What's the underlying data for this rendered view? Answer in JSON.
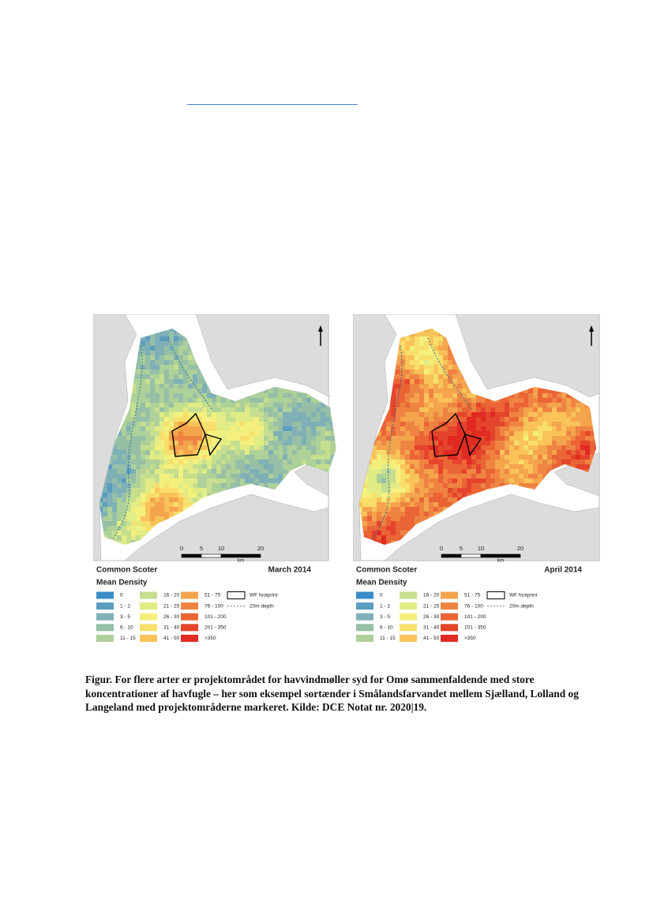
{
  "figure": {
    "panels": [
      {
        "species": "Common Scoter",
        "metric": "Mean Density",
        "period": "March 2014",
        "scale": {
          "ticks": [
            "0",
            "5",
            "10",
            "20"
          ],
          "unit": "km"
        },
        "legend": {
          "classes": [
            {
              "label": "0",
              "color": "#3a8dc8"
            },
            {
              "label": "1 - 2",
              "color": "#5b9dbf"
            },
            {
              "label": "3 - 5",
              "color": "#7fb0b8"
            },
            {
              "label": "6 - 10",
              "color": "#96bfa6"
            },
            {
              "label": "11 - 15",
              "color": "#aed099"
            },
            {
              "label": "16 - 20",
              "color": "#c6df8f"
            },
            {
              "label": "21 - 25",
              "color": "#e2ec84"
            },
            {
              "label": "26 - 30",
              "color": "#f4f07e"
            },
            {
              "label": "31 - 40",
              "color": "#f8df6c"
            },
            {
              "label": "41 - 50",
              "color": "#f9c35a"
            },
            {
              "label": "51 - 75",
              "color": "#f4a44c"
            },
            {
              "label": "76 - 100",
              "color": "#ef8442"
            },
            {
              "label": "101 - 200",
              "color": "#ea6436"
            },
            {
              "label": "201 - 350",
              "color": "#e5442c"
            },
            {
              "label": ">350",
              "color": "#e02a22"
            }
          ],
          "footprint": "WF footprint",
          "depth": "20m depth"
        }
      },
      {
        "species": "Common Scoter",
        "metric": "Mean Density",
        "period": "April 2014",
        "scale": {
          "ticks": [
            "0",
            "5",
            "10",
            "20"
          ],
          "unit": "km"
        },
        "legend": {
          "classes": [
            {
              "label": "0",
              "color": "#3a8dc8"
            },
            {
              "label": "1 - 2",
              "color": "#5b9dbf"
            },
            {
              "label": "3 - 5",
              "color": "#7fb0b8"
            },
            {
              "label": "6 - 10",
              "color": "#96bfa6"
            },
            {
              "label": "11 - 15",
              "color": "#aed099"
            },
            {
              "label": "16 - 20",
              "color": "#c6df8f"
            },
            {
              "label": "21 - 25",
              "color": "#e2ec84"
            },
            {
              "label": "26 - 30",
              "color": "#f4f07e"
            },
            {
              "label": "31 - 40",
              "color": "#f8df6c"
            },
            {
              "label": "41 - 50",
              "color": "#f9c35a"
            },
            {
              "label": "51 - 75",
              "color": "#f4a44c"
            },
            {
              "label": "76 - 100",
              "color": "#ef8442"
            },
            {
              "label": "101 - 200",
              "color": "#ea6436"
            },
            {
              "label": "201 - 350",
              "color": "#e5442c"
            },
            {
              "label": ">350",
              "color": "#e02a22"
            }
          ],
          "footprint": "WF footprint",
          "depth": "20m depth"
        }
      }
    ]
  },
  "caption": {
    "lines": [
      "Figur. For flere arter er projektområdet for havvindmøller syd for Omø sammenfaldende med store",
      "koncentrationer af havfugle – her som eksempel sortænder i Smålandsfarvandet mellem Sjælland, Lolland og",
      "Langeland med projektområderne markeret. Kilde: DCE Notat nr. 2020|19."
    ]
  }
}
